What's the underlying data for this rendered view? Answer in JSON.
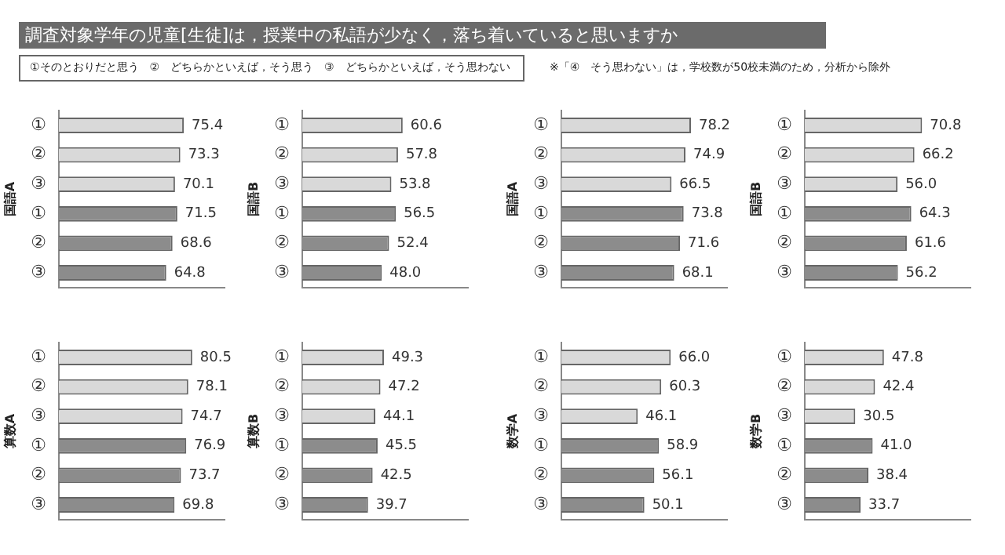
{
  "chart_data": [
    {
      "type": "bar",
      "orientation": "horizontal",
      "title": "調査対象学年の児童[生徒]は，授業中の私語が少なく，落ち着いていると思いますか",
      "annotations": [
        "①そのとおりだと思う　②　どちらかといえば，そう思う　③　どちらかといえば，そう思わない",
        "※「④　そう思わない」は，学校数が50校未満のため，分析から除外"
      ],
      "ylabel": "国語A",
      "categories": [
        "①",
        "②",
        "③",
        "①",
        "②",
        "③"
      ],
      "values": [
        75.4,
        73.3,
        70.1,
        71.5,
        68.6,
        64.8
      ],
      "value_labels": [
        "75.4",
        "73.3",
        "70.1",
        "71.5",
        "68.6",
        "64.8"
      ],
      "colors": [
        "#d9d9d9",
        "#d9d9d9",
        "#d9d9d9",
        "#8c8c8c",
        "#8c8c8c",
        "#8c8c8c"
      ],
      "xlim": [
        0,
        100
      ],
      "tick_labels": "y"
    },
    {
      "type": "bar",
      "orientation": "horizontal",
      "ylabel": "国語B",
      "categories": [
        "①",
        "②",
        "③",
        "①",
        "②",
        "③"
      ],
      "values": [
        60.6,
        57.8,
        53.8,
        56.5,
        52.4,
        48.0
      ],
      "value_labels": [
        "60.6",
        "57.8",
        "53.8",
        "56.5",
        "52.4",
        "48.0"
      ],
      "colors": [
        "#d9d9d9",
        "#d9d9d9",
        "#d9d9d9",
        "#8c8c8c",
        "#8c8c8c",
        "#8c8c8c"
      ],
      "xlim": [
        0,
        100
      ],
      "tick_labels": "y"
    },
    {
      "type": "bar",
      "orientation": "horizontal",
      "ylabel": "国語A",
      "categories": [
        "①",
        "②",
        "③",
        "①",
        "②",
        "③"
      ],
      "values": [
        78.2,
        74.9,
        66.5,
        73.8,
        71.6,
        68.1
      ],
      "value_labels": [
        "78.2",
        "74.9",
        "66.5",
        "73.8",
        "71.6",
        "68.1"
      ],
      "colors": [
        "#d9d9d9",
        "#d9d9d9",
        "#d9d9d9",
        "#8c8c8c",
        "#8c8c8c",
        "#8c8c8c"
      ],
      "xlim": [
        0,
        100
      ],
      "tick_labels": "y"
    },
    {
      "type": "bar",
      "orientation": "horizontal",
      "ylabel": "国語B",
      "categories": [
        "①",
        "②",
        "③",
        "①",
        "②",
        "③"
      ],
      "values": [
        70.8,
        66.2,
        56.0,
        64.3,
        61.6,
        56.2
      ],
      "value_labels": [
        "70.8",
        "66.2",
        "56.0",
        "64.3",
        "61.6",
        "56.2"
      ],
      "colors": [
        "#d9d9d9",
        "#d9d9d9",
        "#d9d9d9",
        "#8c8c8c",
        "#8c8c8c",
        "#8c8c8c"
      ],
      "xlim": [
        0,
        100
      ],
      "tick_labels": "y"
    },
    {
      "type": "bar",
      "orientation": "horizontal",
      "ylabel": "算数A",
      "categories": [
        "①",
        "②",
        "③",
        "①",
        "②",
        "③"
      ],
      "values": [
        80.5,
        78.1,
        74.7,
        76.9,
        73.7,
        69.8
      ],
      "value_labels": [
        "80.5",
        "78.1",
        "74.7",
        "76.9",
        "73.7",
        "69.8"
      ],
      "colors": [
        "#d9d9d9",
        "#d9d9d9",
        "#d9d9d9",
        "#8c8c8c",
        "#8c8c8c",
        "#8c8c8c"
      ],
      "xlim": [
        0,
        100
      ],
      "tick_labels": "y"
    },
    {
      "type": "bar",
      "orientation": "horizontal",
      "ylabel": "算数B",
      "categories": [
        "①",
        "②",
        "③",
        "①",
        "②",
        "③"
      ],
      "values": [
        49.3,
        47.2,
        44.1,
        45.5,
        42.5,
        39.7
      ],
      "value_labels": [
        "49.3",
        "47.2",
        "44.1",
        "45.5",
        "42.5",
        "39.7"
      ],
      "colors": [
        "#d9d9d9",
        "#d9d9d9",
        "#d9d9d9",
        "#8c8c8c",
        "#8c8c8c",
        "#8c8c8c"
      ],
      "xlim": [
        0,
        100
      ],
      "tick_labels": "y"
    },
    {
      "type": "bar",
      "orientation": "horizontal",
      "ylabel": "数学A",
      "categories": [
        "①",
        "②",
        "③",
        "①",
        "②",
        "③"
      ],
      "values": [
        66.0,
        60.3,
        46.1,
        58.9,
        56.1,
        50.1
      ],
      "value_labels": [
        "66.0",
        "60.3",
        "46.1",
        "58.9",
        "56.1",
        "50.1"
      ],
      "colors": [
        "#d9d9d9",
        "#d9d9d9",
        "#d9d9d9",
        "#8c8c8c",
        "#8c8c8c",
        "#8c8c8c"
      ],
      "xlim": [
        0,
        100
      ],
      "tick_labels": "y"
    },
    {
      "type": "bar",
      "orientation": "horizontal",
      "ylabel": "数学B",
      "categories": [
        "①",
        "②",
        "③",
        "①",
        "②",
        "③"
      ],
      "values": [
        47.8,
        42.4,
        30.5,
        41.0,
        38.4,
        33.7
      ],
      "value_labels": [
        "47.8",
        "42.4",
        "30.5",
        "41.0",
        "38.4",
        "33.7"
      ],
      "colors": [
        "#d9d9d9",
        "#d9d9d9",
        "#d9d9d9",
        "#8c8c8c",
        "#8c8c8c",
        "#8c8c8c"
      ],
      "xlim": [
        0,
        100
      ],
      "tick_labels": "y"
    }
  ]
}
